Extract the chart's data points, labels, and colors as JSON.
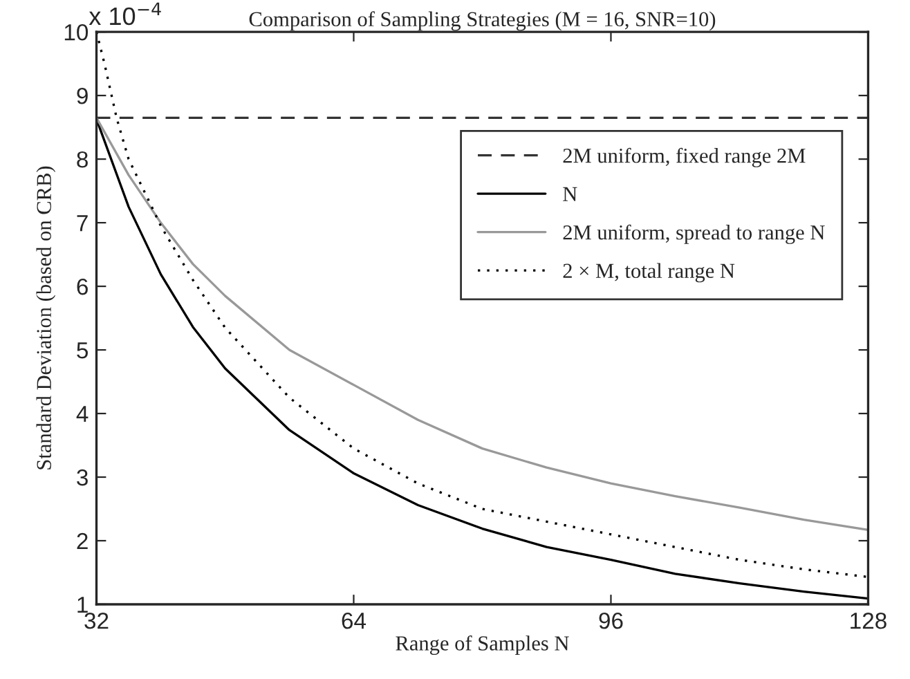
{
  "chart_data": {
    "type": "line",
    "title": "Comparison of Sampling Strategies (M = 16, SNR=10)",
    "xlabel": "Range of Samples N",
    "ylabel": "Standard Deviation (based on CRB)",
    "annotations": [
      "x 10$^{−4}$"
    ],
    "series": [
      {
        "name": "2M uniform, fixed range 2M",
        "color": "#333333",
        "line_style": "dashed",
        "x": [
          32,
          128
        ],
        "values": [
          8.65,
          8.65
        ]
      },
      {
        "name": "N",
        "color": "#000000",
        "line_style": "solid",
        "x": [
          32,
          36,
          40,
          44,
          48,
          56,
          64,
          72,
          80,
          88,
          96,
          104,
          112,
          120,
          128
        ],
        "values": [
          8.63,
          7.25,
          6.19,
          5.36,
          4.71,
          3.74,
          3.06,
          2.56,
          2.19,
          1.9,
          1.7,
          1.48,
          1.33,
          1.2,
          1.09
        ]
      },
      {
        "name": "2M uniform, spread to range N",
        "color": "#999999",
        "line_style": "solid",
        "x": [
          32,
          36,
          40,
          44,
          48,
          56,
          64,
          72,
          80,
          88,
          96,
          104,
          112,
          120,
          128
        ],
        "values": [
          8.65,
          7.75,
          7.0,
          6.35,
          5.85,
          5.0,
          4.45,
          3.9,
          3.45,
          3.15,
          2.9,
          2.7,
          2.52,
          2.33,
          2.17
        ]
      },
      {
        "name": "2 × M, total range N",
        "color": "#000000",
        "line_style": "dotted",
        "x": [
          32,
          33,
          34.5,
          36,
          38.8,
          40,
          44,
          48,
          56,
          64,
          72,
          80,
          88,
          96,
          104,
          112,
          120,
          128
        ],
        "values": [
          10.0,
          9.5,
          8.65,
          8.0,
          7.27,
          6.95,
          6.1,
          5.35,
          4.25,
          3.45,
          2.9,
          2.5,
          2.3,
          2.1,
          1.9,
          1.7,
          1.55,
          1.43
        ]
      }
    ],
    "xlim": [
      32,
      128
    ],
    "xticks": [
      32,
      64,
      96,
      128
    ],
    "ylim": [
      1,
      10
    ],
    "yticks": [
      1,
      2,
      3,
      4,
      5,
      6,
      7,
      8,
      9,
      10
    ],
    "grid": false,
    "legend": "right"
  }
}
